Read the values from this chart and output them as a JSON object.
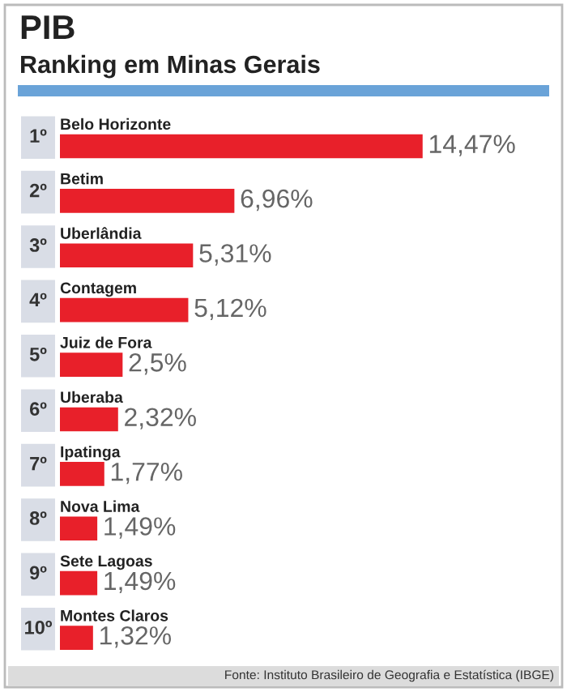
{
  "chart_data": {
    "type": "bar",
    "orientation": "horizontal",
    "title": "PIB",
    "subtitle": "Ranking em Minas Gerais",
    "categories": [
      "Belo Horizonte",
      "Betim",
      "Uberlândia",
      "Contagem",
      "Juiz de Fora",
      "Uberaba",
      "Ipatinga",
      "Nova Lima",
      "Sete Lagoas",
      "Montes Claros"
    ],
    "values": [
      14.47,
      6.96,
      5.31,
      5.12,
      2.5,
      2.32,
      1.77,
      1.49,
      1.49,
      1.32
    ],
    "value_labels": [
      "14,47%",
      "6,96%",
      "5,31%",
      "5,12%",
      "2,5%",
      "2,32%",
      "1,77%",
      "1,49%",
      "1,49%",
      "1,32%"
    ],
    "color": "#e8202a",
    "annotations": [
      "1º",
      "2º",
      "3º",
      "4º",
      "5º",
      "6º",
      "7º",
      "8º",
      "9º",
      "10º",
      "Fonte: Instituto Brasileiro de Geografia e Estatística (IBGE)"
    ],
    "tick_labels": false
  }
}
